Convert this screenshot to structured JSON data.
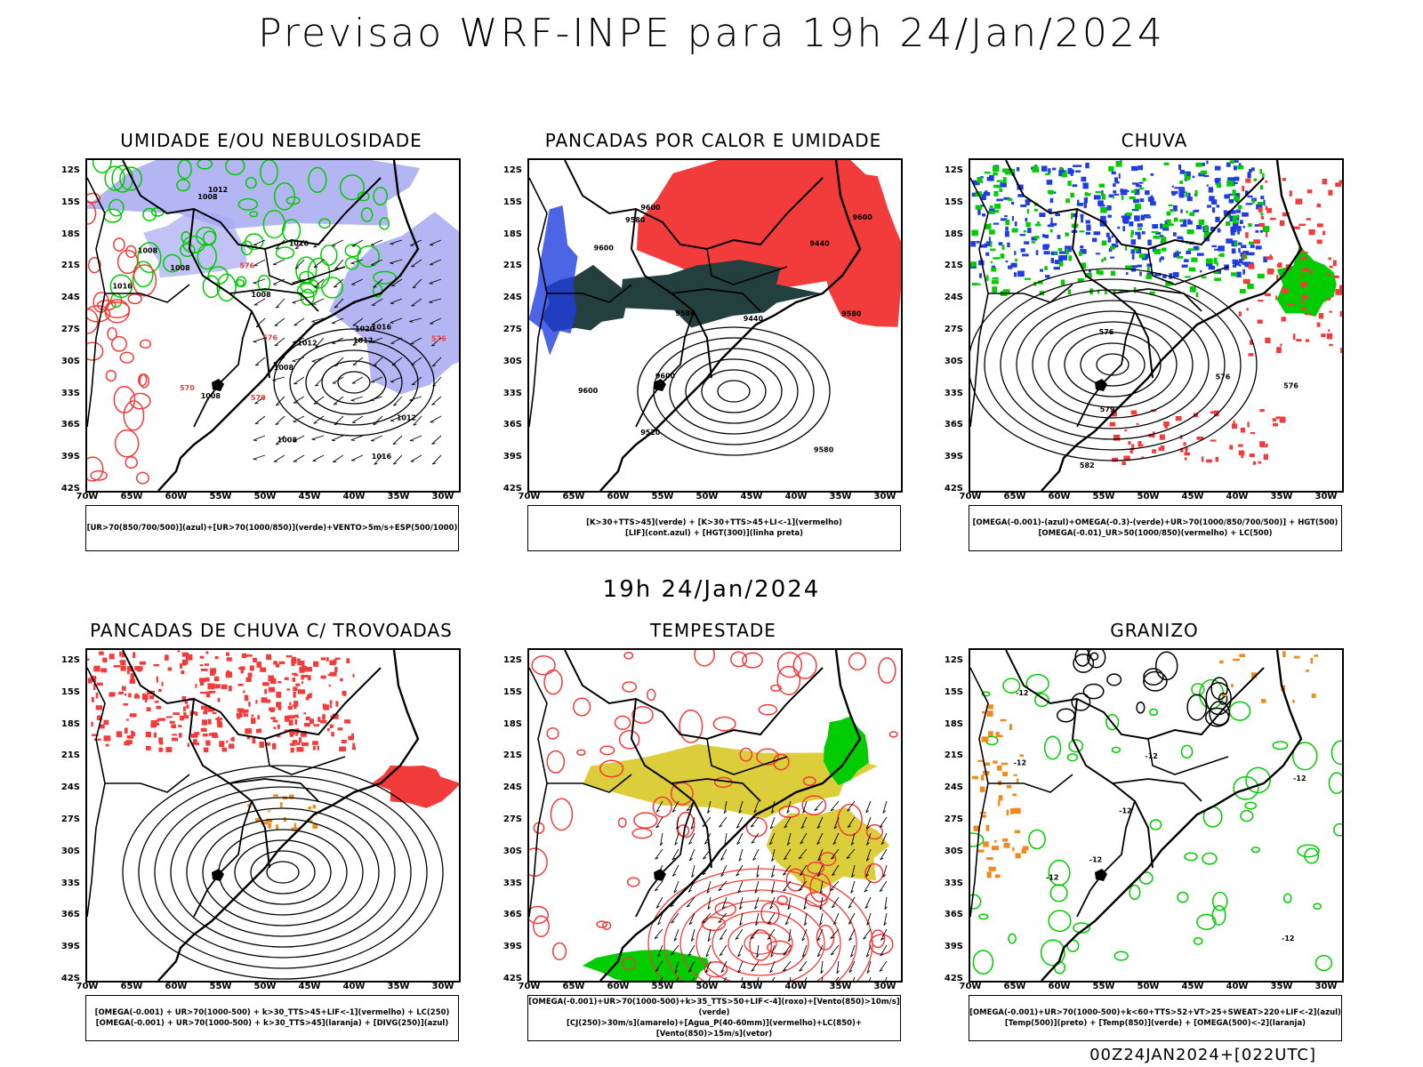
{
  "title": "Previsao WRF-INPE  para 19h 24/Jan/2024",
  "subtitle": "19h 24/Jan/2024",
  "footer": "00Z24JAN2024+[022UTC]",
  "axes": {
    "lat": [
      "12S",
      "15S",
      "18S",
      "21S",
      "24S",
      "27S",
      "30S",
      "33S",
      "36S",
      "39S",
      "42S"
    ],
    "lon": [
      "70W",
      "65W",
      "60W",
      "55W",
      "50W",
      "45W",
      "40W",
      "35W",
      "30W"
    ]
  },
  "colors": {
    "humidity_blue": "#a7a9f2",
    "green": "#00cc00",
    "red": "#f23b3b",
    "dark_teal": "#23403f",
    "blue": "#1f3de0",
    "yellow": "#dccd3a",
    "orange": "#f08a1d"
  },
  "panels": [
    {
      "title": "UMIDADE E/OU NEBULOSIDADE",
      "legend": [
        "[UR>70(850/700/500)](azul)+[UR>70(1000/850)](verde)+VENTO>5m/s+ESP(500/1000)"
      ],
      "contour_labels": [
        "1008",
        "1008",
        "1008",
        "1008",
        "1008",
        "1016",
        "1016",
        "1012",
        "1012",
        "1012",
        "1012",
        "1020",
        "1016",
        "1016",
        "1008",
        "1008",
        "576",
        "576",
        "570",
        "570",
        "576"
      ]
    },
    {
      "title": "PANCADAS POR CALOR E UMIDADE",
      "legend": [
        "[K>30+TTS>45](verde)  +  [K>30+TTS>45+LI<-1](vermelho)",
        "[LIF](cont.azul)  +  [HGT(300)](linha preta)"
      ],
      "contour_labels": [
        "9580",
        "9580",
        "9580",
        "9580",
        "9600",
        "9600",
        "9440",
        "9520",
        "9600",
        "9600",
        "9440",
        "9600"
      ]
    },
    {
      "title": "CHUVA",
      "legend": [
        "[OMEGA(-0.001)-(azul)+OMEGA(-0.3)-(verde)+UR>70(1000/850/700/500)]  +  HGT(500)",
        "[OMEGA(-0.01)_UR>50(1000/850)(vermelho)  +  LC(500)"
      ],
      "contour_labels": [
        "582",
        "576",
        "576",
        "579",
        "576"
      ]
    },
    {
      "title": "PANCADAS DE CHUVA C/ TROVOADAS",
      "legend": [
        "[OMEGA(-0.001)  +  UR>70(1000-500)  +  k>30_TTS>45+LIF<-1](vermelho)  +  LC(250)",
        "[OMEGA(-0.001)  +  UR>70(1000-500)  +  k>30_TTS>45](laranja)  +  [DIVG(250)](azul)"
      ],
      "contour_labels": []
    },
    {
      "title": "TEMPESTADE",
      "legend": [
        "[OMEGA(-0.001)+UR>70(1000-500)+k>35_TTS>50+LIF<-4](roxo)+[Vento(850)>10m/s](verde)",
        "[CJ(250)>30m/s](amarelo)+[Agua_P(40-60mm)](vermelho)+LC(850)+[Vento(850)>15m/s](vetor)"
      ],
      "contour_labels": []
    },
    {
      "title": "GRANIZO",
      "legend": [
        "[OMEGA(-0.001)+UR>70(1000-500)+k<60+TTS>52+VT>25+SWEAT>220+LIF<-2](azul)",
        "[Temp(500)](preto)  +  [Temp(850)](verde)  +  [OMEGA(500)<-2](laranja)"
      ],
      "contour_labels": [
        "-12",
        "-12",
        "-12",
        "-12",
        "-12",
        "-12",
        "-12",
        "-12"
      ]
    }
  ]
}
